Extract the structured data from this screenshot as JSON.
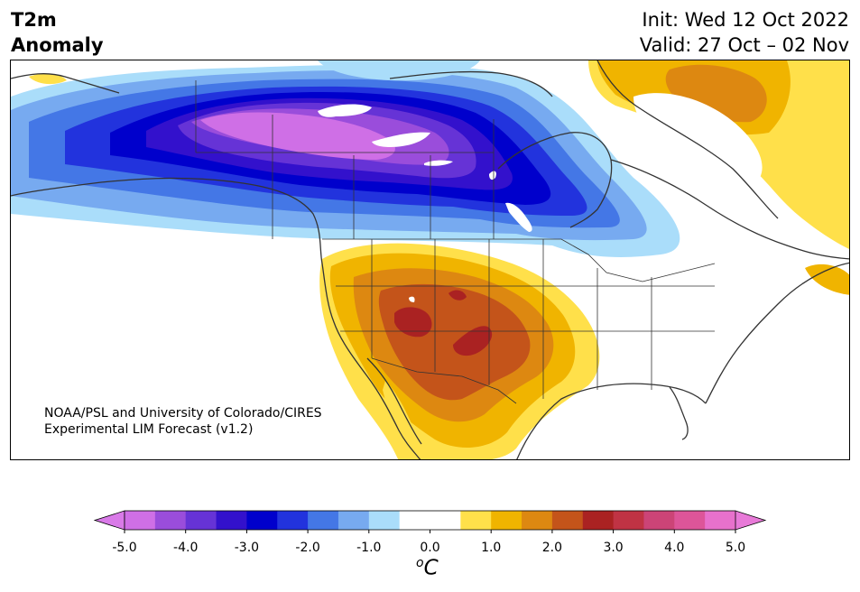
{
  "header": {
    "title_line1": "T2m",
    "title_line2": "Anomaly",
    "init": "Init: Wed 12 Oct 2022",
    "valid": "Valid: 27 Oct – 02 Nov"
  },
  "credit": {
    "line1": "NOAA/PSL and University of Colorado/CIRES",
    "line2": "Experimental LIM Forecast (v1.2)"
  },
  "colorbar": {
    "unit_base": "C",
    "unit_super": "o",
    "ticks": [
      "-5.0",
      "-4.0",
      "-3.0",
      "-2.0",
      "-1.0",
      "0.0",
      "1.0",
      "2.0",
      "3.0",
      "4.0",
      "5.0"
    ],
    "colors": [
      "#cf6fe6",
      "#9a4ddb",
      "#6633d6",
      "#3311cc",
      "#0000cc",
      "#2233dd",
      "#4477e6",
      "#77aaf0",
      "#aaddfa",
      "#ffffff",
      "#ffffff",
      "#ffe04a",
      "#f0b400",
      "#dd8811",
      "#c4541a",
      "#aa2222",
      "#c03344",
      "#cc4477",
      "#dd5599",
      "#e871cc"
    ],
    "under_color": "#d97ae8",
    "over_color": "#e87ad8"
  },
  "map": {
    "region": "North America",
    "colors": {
      "cold_light": "#aaddfa",
      "cold_1": "#77aaf0",
      "cold_2": "#4477e6",
      "cold_3": "#2233dd",
      "cold_4": "#0000cc",
      "cold_5": "#3311cc",
      "cold_6": "#6633d6",
      "cold_7": "#9a4ddb",
      "cold_8": "#cf6fe6",
      "warm_1": "#ffe04a",
      "warm_2": "#f0b400",
      "warm_3": "#dd8811",
      "warm_4": "#c4541a",
      "warm_5": "#aa2222",
      "border": "#333333",
      "lake": "#ffffff"
    }
  }
}
